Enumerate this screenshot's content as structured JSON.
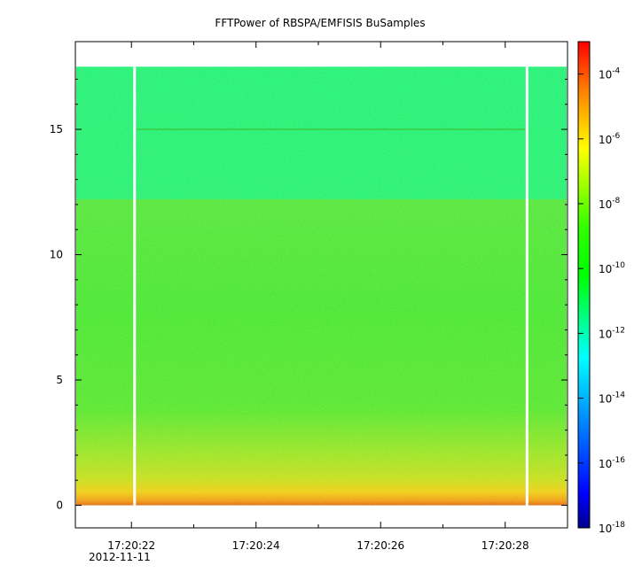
{
  "chart_data": {
    "type": "heatmap",
    "title": "FFTPower of RBSPA/EMFISIS  BuSamples",
    "xlabel": "",
    "ylabel": "",
    "x_date_label": "2012-11-11",
    "x_range": [
      "17:20:21.1",
      "17:20:29.0"
    ],
    "x_major_ticks": [
      "17:20:22",
      "17:20:24",
      "17:20:26",
      "17:20:28"
    ],
    "x_minor_ticks": [
      "17:20:23",
      "17:20:25",
      "17:20:27"
    ],
    "ylim": [
      -0.9,
      18.5
    ],
    "y_ticks": [
      0,
      5,
      10,
      15
    ],
    "data_y_max": 17.5,
    "data_gaps": [
      "17:20:22.05",
      "17:20:28.35"
    ],
    "colorbar": {
      "scale": "log",
      "range": [
        1e-18,
        0.001
      ],
      "ticks": [
        {
          "base": "10",
          "exp": "-4",
          "value": 0.0001
        },
        {
          "base": "10",
          "exp": "-6",
          "value": 1e-06
        },
        {
          "base": "10",
          "exp": "-8",
          "value": 1e-08
        },
        {
          "base": "10",
          "exp": "-10",
          "value": 1e-10
        },
        {
          "base": "10",
          "exp": "-12",
          "value": 1e-12
        },
        {
          "base": "10",
          "exp": "-14",
          "value": 1e-14
        },
        {
          "base": "10",
          "exp": "-16",
          "value": 1e-16
        },
        {
          "base": "10",
          "exp": "-18",
          "value": 1e-18
        }
      ],
      "colors": [
        "#00008b",
        "#0000ff",
        "#00ffff",
        "#00ff00",
        "#ffff00",
        "#ff8000",
        "#ff0000"
      ]
    },
    "grid": false,
    "legend": "none"
  }
}
